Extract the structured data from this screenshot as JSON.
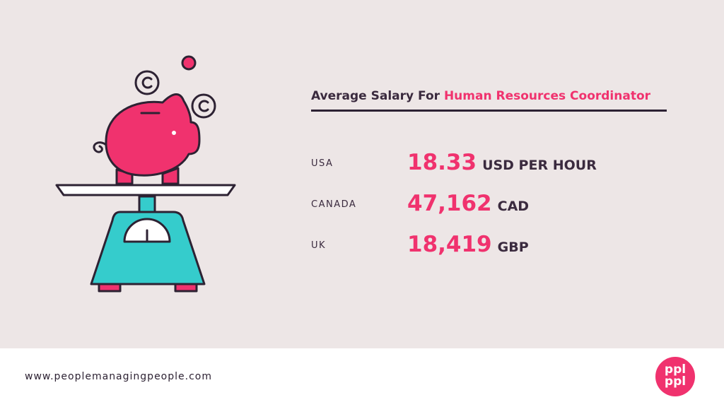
{
  "header": {
    "title_prefix": "Average Salary For",
    "title_role": "Human Resources Coordinator"
  },
  "rows": [
    {
      "country": "USA",
      "amount": "18.33",
      "unit": "USD PER HOUR"
    },
    {
      "country": "CANADA",
      "amount": "47,162",
      "unit": "CAD"
    },
    {
      "country": "UK",
      "amount": "18,419",
      "unit": "GBP"
    }
  ],
  "footer": {
    "url": "www.peoplemanagingpeople.com",
    "logo_top": "ppl",
    "logo_bottom": "ppl"
  }
}
